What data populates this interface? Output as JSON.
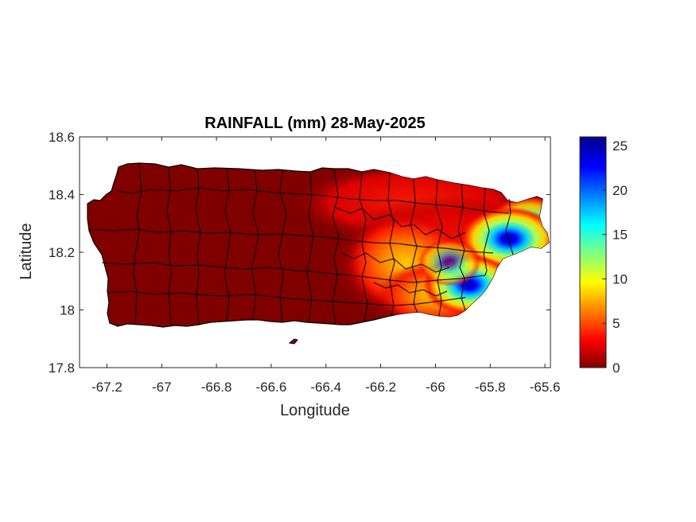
{
  "figure": {
    "title": "RAINFALL (mm) 28-May-2025",
    "xlabel": "Longitude",
    "ylabel": "Latitude"
  },
  "map": {
    "region": "Puerto Rico",
    "variable": "Rainfall",
    "units": "mm",
    "date": "28-May-2025",
    "xlim": [
      -67.3,
      -65.58
    ],
    "ylim": [
      17.8,
      18.6
    ],
    "x_ticks": [
      "-67.2",
      "-67",
      "-66.8",
      "-66.6",
      "-66.4",
      "-66.2",
      "-66",
      "-65.8",
      "-65.6"
    ],
    "y_ticks": [
      "17.8",
      "18",
      "18.2",
      "18.4",
      "18.6"
    ],
    "colormap": "jet",
    "land_base_color": "#800000",
    "boundary_color": "#000000",
    "rainfall_hotspots": [
      {
        "lon": -65.75,
        "lat": 18.25,
        "value_mm": 25
      },
      {
        "lon": -65.88,
        "lat": 18.09,
        "value_mm": 25
      },
      {
        "lon": -65.65,
        "lat": 18.3,
        "value_mm": 15
      },
      {
        "lon": -65.95,
        "lat": 18.05,
        "value_mm": 12
      },
      {
        "lon": -66.1,
        "lat": 18.1,
        "value_mm": 8
      },
      {
        "lon": -66.25,
        "lat": 18.25,
        "value_mm": 5
      }
    ]
  },
  "colorbar": {
    "ticks": [
      "0",
      "5",
      "10",
      "15",
      "20",
      "25"
    ],
    "min": 0,
    "max": 26,
    "colors": [
      "#800000",
      "#ff0000",
      "#ffff00",
      "#00ffff",
      "#0000ff",
      "#00008f"
    ]
  }
}
